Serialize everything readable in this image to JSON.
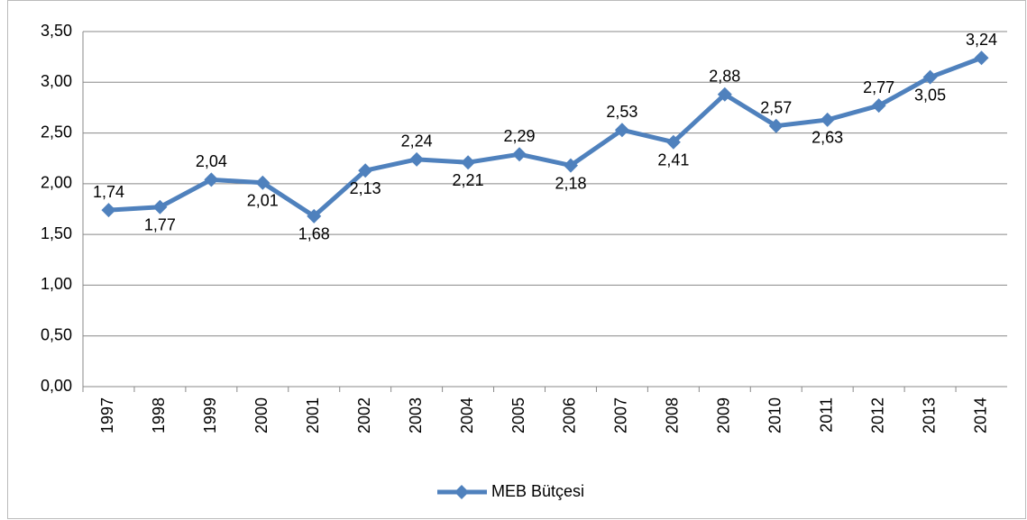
{
  "chart_data": {
    "type": "line",
    "categories": [
      "1997",
      "1998",
      "1999",
      "2000",
      "2001",
      "2002",
      "2003",
      "2004",
      "2005",
      "2006",
      "2007",
      "2008",
      "2009",
      "2010",
      "2011",
      "2012",
      "2013",
      "2014"
    ],
    "series": [
      {
        "name": "MEB Bütçesi",
        "color": "#4f81bd",
        "values": [
          1.74,
          1.77,
          2.04,
          2.01,
          1.68,
          2.13,
          2.24,
          2.21,
          2.29,
          2.18,
          2.53,
          2.41,
          2.88,
          2.57,
          2.63,
          2.77,
          3.05,
          3.24
        ],
        "value_labels": [
          "1,74",
          "1,77",
          "2,04",
          "2,01",
          "1,68",
          "2,13",
          "2,24",
          "2,21",
          "2,29",
          "2,18",
          "2,53",
          "2,41",
          "2,88",
          "2,57",
          "2,63",
          "2,77",
          "3,05",
          "3,24"
        ]
      }
    ],
    "ylim": [
      0,
      3.5
    ],
    "yticks": [
      {
        "value": 0,
        "label": "0,00"
      },
      {
        "value": 0.5,
        "label": "0,50"
      },
      {
        "value": 1,
        "label": "1,00"
      },
      {
        "value": 1.5,
        "label": "1,50"
      },
      {
        "value": 2,
        "label": "2,00"
      },
      {
        "value": 2.5,
        "label": "2,50"
      },
      {
        "value": 3,
        "label": "3,00"
      },
      {
        "value": 3.5,
        "label": "3,50"
      }
    ],
    "grid": true,
    "legend": "bottom"
  }
}
